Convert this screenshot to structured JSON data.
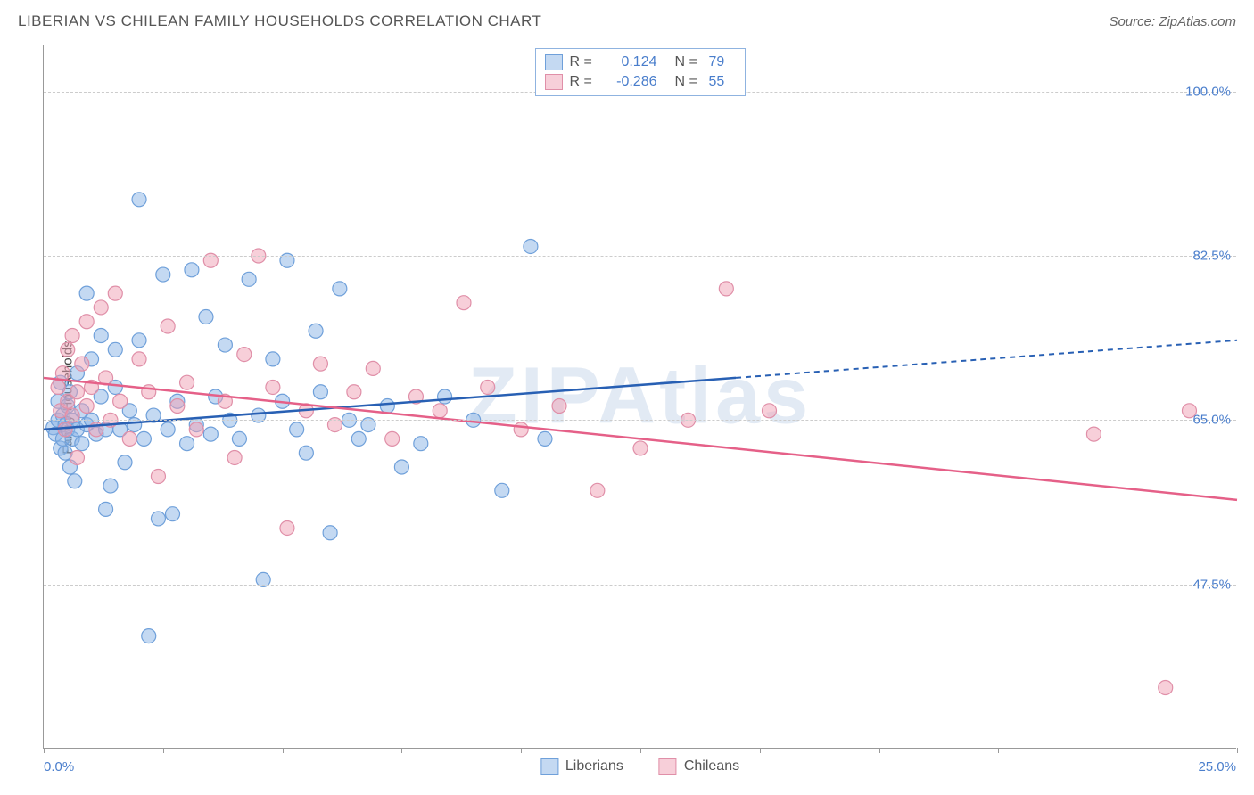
{
  "header": {
    "title": "LIBERIAN VS CHILEAN FAMILY HOUSEHOLDS CORRELATION CHART",
    "source": "Source: ZipAtlas.com"
  },
  "watermark": "ZIPAtlas",
  "chart": {
    "type": "scatter",
    "ylabel": "Family Households",
    "xlim": [
      0,
      25
    ],
    "ylim": [
      30,
      105
    ],
    "xtick_positions": [
      0,
      2.5,
      5,
      7.5,
      10,
      12.5,
      15,
      17.5,
      20,
      22.5,
      25
    ],
    "xaxis_labels": [
      {
        "pos": 0,
        "text": "0.0%"
      },
      {
        "pos": 25,
        "text": "25.0%"
      }
    ],
    "ytick_lines": [
      {
        "pos": 100.0,
        "label": "100.0%"
      },
      {
        "pos": 82.5,
        "label": "82.5%"
      },
      {
        "pos": 65.0,
        "label": "65.0%"
      },
      {
        "pos": 47.5,
        "label": "47.5%"
      }
    ],
    "background_color": "#ffffff",
    "grid_color": "#cccccc",
    "axis_color": "#999999",
    "text_color": "#555555",
    "value_color": "#4a7ecc",
    "marker_radius": 8,
    "marker_stroke_width": 1.2,
    "trendline_width": 2.5,
    "series": [
      {
        "name": "Liberians",
        "fill": "rgba(138,180,230,0.5)",
        "stroke": "#6fa0da",
        "line_color": "#2860b4",
        "R": "0.124",
        "N": "79",
        "trend": {
          "x1": 0,
          "y1": 64.0,
          "x2": 14.5,
          "y2": 69.5,
          "x2_ext": 25,
          "y2_ext": 73.5
        },
        "points": [
          [
            0.2,
            64.2
          ],
          [
            0.25,
            63.5
          ],
          [
            0.3,
            65.0
          ],
          [
            0.3,
            67.0
          ],
          [
            0.35,
            62.0
          ],
          [
            0.35,
            69.0
          ],
          [
            0.4,
            65.5
          ],
          [
            0.4,
            63.0
          ],
          [
            0.45,
            61.5
          ],
          [
            0.45,
            64.5
          ],
          [
            0.5,
            64.0
          ],
          [
            0.5,
            66.5
          ],
          [
            0.55,
            60.0
          ],
          [
            0.55,
            68.0
          ],
          [
            0.6,
            63.0
          ],
          [
            0.6,
            65.0
          ],
          [
            0.65,
            58.5
          ],
          [
            0.7,
            64.0
          ],
          [
            0.7,
            70.0
          ],
          [
            0.8,
            62.5
          ],
          [
            0.8,
            66.0
          ],
          [
            0.9,
            64.5
          ],
          [
            0.9,
            78.5
          ],
          [
            1.0,
            65.0
          ],
          [
            1.0,
            71.5
          ],
          [
            1.1,
            63.5
          ],
          [
            1.2,
            74.0
          ],
          [
            1.2,
            67.5
          ],
          [
            1.3,
            55.5
          ],
          [
            1.3,
            64.0
          ],
          [
            1.4,
            58.0
          ],
          [
            1.5,
            68.5
          ],
          [
            1.5,
            72.5
          ],
          [
            1.6,
            64.0
          ],
          [
            1.7,
            60.5
          ],
          [
            1.8,
            66.0
          ],
          [
            1.9,
            64.5
          ],
          [
            2.0,
            88.5
          ],
          [
            2.0,
            73.5
          ],
          [
            2.1,
            63.0
          ],
          [
            2.2,
            42.0
          ],
          [
            2.3,
            65.5
          ],
          [
            2.4,
            54.5
          ],
          [
            2.5,
            80.5
          ],
          [
            2.6,
            64.0
          ],
          [
            2.7,
            55.0
          ],
          [
            2.8,
            67.0
          ],
          [
            3.0,
            62.5
          ],
          [
            3.1,
            81.0
          ],
          [
            3.2,
            64.5
          ],
          [
            3.4,
            76.0
          ],
          [
            3.5,
            63.5
          ],
          [
            3.6,
            67.5
          ],
          [
            3.8,
            73.0
          ],
          [
            3.9,
            65.0
          ],
          [
            4.1,
            63.0
          ],
          [
            4.3,
            80.0
          ],
          [
            4.5,
            65.5
          ],
          [
            4.6,
            48.0
          ],
          [
            4.8,
            71.5
          ],
          [
            5.0,
            67.0
          ],
          [
            5.1,
            82.0
          ],
          [
            5.3,
            64.0
          ],
          [
            5.5,
            61.5
          ],
          [
            5.7,
            74.5
          ],
          [
            5.8,
            68.0
          ],
          [
            6.0,
            53.0
          ],
          [
            6.2,
            79.0
          ],
          [
            6.4,
            65.0
          ],
          [
            6.6,
            63.0
          ],
          [
            6.8,
            64.5
          ],
          [
            7.2,
            66.5
          ],
          [
            7.5,
            60.0
          ],
          [
            7.9,
            62.5
          ],
          [
            8.4,
            67.5
          ],
          [
            9.0,
            65.0
          ],
          [
            9.6,
            57.5
          ],
          [
            10.2,
            83.5
          ],
          [
            10.5,
            63.0
          ]
        ]
      },
      {
        "name": "Chileans",
        "fill": "rgba(240,160,180,0.5)",
        "stroke": "#e08fa8",
        "line_color": "#e56088",
        "R": "-0.286",
        "N": "55",
        "trend": {
          "x1": 0,
          "y1": 69.5,
          "x2": 25,
          "y2": 56.5
        },
        "points": [
          [
            0.3,
            68.5
          ],
          [
            0.35,
            66.0
          ],
          [
            0.4,
            70.0
          ],
          [
            0.45,
            64.0
          ],
          [
            0.5,
            72.5
          ],
          [
            0.5,
            67.0
          ],
          [
            0.6,
            65.5
          ],
          [
            0.6,
            74.0
          ],
          [
            0.7,
            68.0
          ],
          [
            0.7,
            61.0
          ],
          [
            0.8,
            71.0
          ],
          [
            0.9,
            66.5
          ],
          [
            0.9,
            75.5
          ],
          [
            1.0,
            68.5
          ],
          [
            1.1,
            64.0
          ],
          [
            1.2,
            77.0
          ],
          [
            1.3,
            69.5
          ],
          [
            1.4,
            65.0
          ],
          [
            1.5,
            78.5
          ],
          [
            1.6,
            67.0
          ],
          [
            1.8,
            63.0
          ],
          [
            2.0,
            71.5
          ],
          [
            2.2,
            68.0
          ],
          [
            2.4,
            59.0
          ],
          [
            2.6,
            75.0
          ],
          [
            2.8,
            66.5
          ],
          [
            3.0,
            69.0
          ],
          [
            3.2,
            64.0
          ],
          [
            3.5,
            82.0
          ],
          [
            3.8,
            67.0
          ],
          [
            4.0,
            61.0
          ],
          [
            4.2,
            72.0
          ],
          [
            4.5,
            82.5
          ],
          [
            4.8,
            68.5
          ],
          [
            5.1,
            53.5
          ],
          [
            5.5,
            66.0
          ],
          [
            5.8,
            71.0
          ],
          [
            6.1,
            64.5
          ],
          [
            6.5,
            68.0
          ],
          [
            6.9,
            70.5
          ],
          [
            7.3,
            63.0
          ],
          [
            7.8,
            67.5
          ],
          [
            8.3,
            66.0
          ],
          [
            8.8,
            77.5
          ],
          [
            9.3,
            68.5
          ],
          [
            10.0,
            64.0
          ],
          [
            10.8,
            66.5
          ],
          [
            11.6,
            57.5
          ],
          [
            12.5,
            62.0
          ],
          [
            13.5,
            65.0
          ],
          [
            14.3,
            79.0
          ],
          [
            15.2,
            66.0
          ],
          [
            22.0,
            63.5
          ],
          [
            23.5,
            36.5
          ],
          [
            24.0,
            66.0
          ]
        ]
      }
    ],
    "legend_bottom": [
      {
        "label": "Liberians",
        "fill": "rgba(138,180,230,0.5)",
        "stroke": "#6fa0da"
      },
      {
        "label": "Chileans",
        "fill": "rgba(240,160,180,0.5)",
        "stroke": "#e08fa8"
      }
    ]
  }
}
